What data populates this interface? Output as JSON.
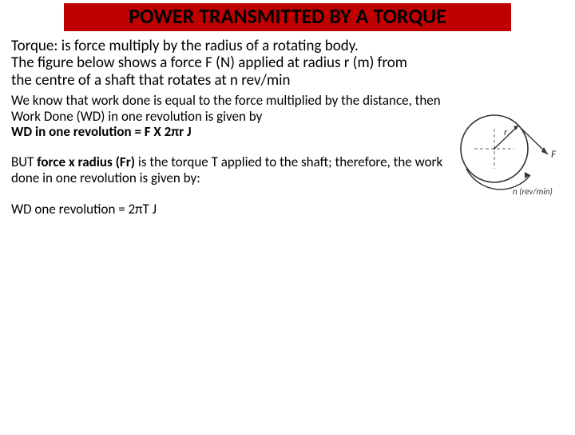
{
  "title": "POWER TRANSMITTED BY A TORQUE",
  "para1": "Torque: is force multiply by the radius of a rotating body.\nThe figure below shows a force F (N) applied at radius r (m) from the centre of a shaft that rotates at n rev/min",
  "para2_a": "We know that work done is equal to the force multiplied by the distance, then Work Done (WD) in one revolution is given by",
  "para2_b": "WD in one revolution = F X 2πr J",
  "para3_a": "BUT ",
  "para3_b": "force x radius (Fr)",
  "para3_c": " is the torque T applied to the shaft; therefore, the work done in one revolution is given by:",
  "para4": "WD one revolution = 2πT J",
  "diagram": {
    "radius_label": "r",
    "force_label": "F",
    "rpm_label": "n (rev/min)",
    "circle_stroke": "#333333",
    "arrow_color": "#333333",
    "centerline_color": "#666666"
  },
  "colors": {
    "title_bg": "#c00000",
    "title_fg": "#000000",
    "body_bg": "#ffffff",
    "text": "#000000"
  }
}
